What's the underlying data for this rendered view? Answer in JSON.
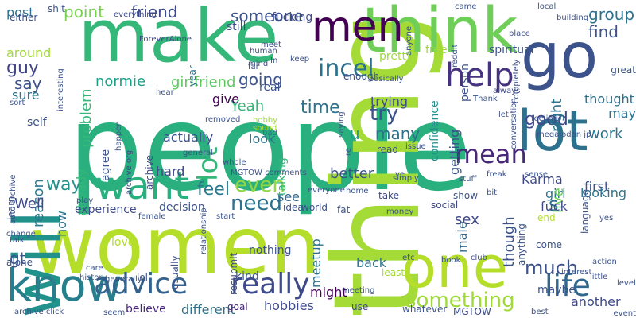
{
  "words": [
    {
      "text": "people",
      "color": "#2ab07f"
    },
    {
      "text": "women",
      "color": "#b5de2b"
    },
    {
      "text": "thing",
      "color": "#a5db36"
    },
    {
      "text": "make",
      "color": "#35b779"
    },
    {
      "text": "think",
      "color": "#6ece58"
    },
    {
      "text": "will",
      "color": "#21918c"
    },
    {
      "text": "go",
      "color": "#3b528b"
    },
    {
      "text": "lot",
      "color": "#2c728e"
    },
    {
      "text": "one",
      "color": "#b5de2b"
    },
    {
      "text": "know",
      "color": "#277f8e"
    },
    {
      "text": "men",
      "color": "#440154"
    },
    {
      "text": "want",
      "color": "#2ab07f"
    },
    {
      "text": "advice",
      "color": "#33638d"
    },
    {
      "text": "really",
      "color": "#3e4a89"
    },
    {
      "text": "life",
      "color": "#31688e"
    },
    {
      "text": "help",
      "color": "#46327e"
    },
    {
      "text": "incel",
      "color": "#2c728e"
    },
    {
      "text": "something",
      "color": "#a0da39"
    },
    {
      "text": "much",
      "color": "#3b528b"
    },
    {
      "text": "need",
      "color": "#2c728e"
    },
    {
      "text": "mean",
      "color": "#482878"
    },
    {
      "text": "even",
      "color": "#8fd744"
    },
    {
      "text": "good",
      "color": "#3e4a89"
    },
    {
      "text": "lot",
      "color": "#35b779"
    },
    {
      "text": "feel",
      "color": "#2a788e"
    },
    {
      "text": "way",
      "color": "#21918c"
    },
    {
      "text": "time",
      "color": "#2c728e"
    },
    {
      "text": "try",
      "color": "#3b528b"
    },
    {
      "text": "guy",
      "color": "#414487"
    },
    {
      "text": "post",
      "color": "#2c728e"
    },
    {
      "text": "point",
      "color": "#7ad151"
    },
    {
      "text": "friend",
      "color": "#3e4a89"
    },
    {
      "text": "someone",
      "color": "#3b528b"
    },
    {
      "text": "group",
      "color": "#2c728e"
    },
    {
      "text": "find",
      "color": "#3b528b"
    },
    {
      "text": "going",
      "color": "#3b528b"
    },
    {
      "text": "problem",
      "color": "#35b779"
    },
    {
      "text": "normie",
      "color": "#1f9e89"
    },
    {
      "text": "girlfriend",
      "color": "#5ec962"
    },
    {
      "text": "say",
      "color": "#3b528b"
    },
    {
      "text": "reason",
      "color": "#2a788e"
    },
    {
      "text": "Well",
      "color": "#3e4a89"
    },
    {
      "text": "see",
      "color": "#31688e"
    },
    {
      "text": "work",
      "color": "#2c728e"
    },
    {
      "text": "right",
      "color": "#2c728e"
    },
    {
      "text": "better",
      "color": "#3b528b"
    },
    {
      "text": "meetup",
      "color": "#2c728e"
    },
    {
      "text": "might",
      "color": "#440154"
    },
    {
      "text": "though",
      "color": "#3b528b"
    },
    {
      "text": "many",
      "color": "#2c728e"
    },
    {
      "text": "Yeah",
      "color": "#35b779"
    },
    {
      "text": "hobbies",
      "color": "#3e4a89"
    },
    {
      "text": "different",
      "color": "#2c728e"
    },
    {
      "text": "believe",
      "color": "#482878"
    },
    {
      "text": "decision",
      "color": "#3b528b"
    },
    {
      "text": "already",
      "color": "#35b779"
    },
    {
      "text": "sure",
      "color": "#2a788e"
    },
    {
      "text": "gt",
      "color": "#3b528b"
    },
    {
      "text": "s",
      "color": "#2c728e"
    },
    {
      "text": "u",
      "color": "#1f9e89"
    },
    {
      "text": "back",
      "color": "#2c728e"
    },
    {
      "text": "another",
      "color": "#3e4a89"
    },
    {
      "text": "look",
      "color": "#2c728e"
    },
    {
      "text": "Karma",
      "color": "#3e4a89"
    },
    {
      "text": "maybe",
      "color": "#3b528b"
    },
    {
      "text": "sex",
      "color": "#3e4a89"
    },
    {
      "text": "girl",
      "color": "#2c728e"
    },
    {
      "text": "first",
      "color": "#3b528b"
    },
    {
      "text": "thought",
      "color": "#2c728e"
    },
    {
      "text": "may",
      "color": "#2c728e"
    },
    {
      "text": "confidence",
      "color": "#21918c"
    },
    {
      "text": "getting",
      "color": "#3b528b"
    },
    {
      "text": "trying",
      "color": "#3e4a89"
    },
    {
      "text": "talking",
      "color": "#35b779"
    },
    {
      "text": "agree",
      "color": "#3b528b"
    },
    {
      "text": "actually",
      "color": "#3b528b"
    },
    {
      "text": "hard",
      "color": "#3e4a89"
    },
    {
      "text": "give",
      "color": "#440154"
    },
    {
      "text": "real",
      "color": "#3b528b"
    },
    {
      "text": "male",
      "color": "#31688e"
    },
    {
      "text": "live",
      "color": "#6ece58"
    },
    {
      "text": "fuck",
      "color": "#3e4a89"
    },
    {
      "text": "looking",
      "color": "#2c728e"
    },
    {
      "text": "experience",
      "color": "#3e4a89"
    },
    {
      "text": "now",
      "color": "#2c728e"
    },
    {
      "text": "archive",
      "color": "#3e4a89"
    },
    {
      "text": "self",
      "color": "#3b528b"
    },
    {
      "text": "still",
      "color": "#3e4a89"
    },
    {
      "text": "around",
      "color": "#a0da39"
    },
    {
      "text": "love",
      "color": "#b5de2b"
    },
    {
      "text": "nothing",
      "color": "#3b528b"
    },
    {
      "text": "kind",
      "color": "#3b528b"
    },
    {
      "text": "goal",
      "color": "#482878"
    },
    {
      "text": "use",
      "color": "#3e4a89"
    },
    {
      "text": "whatever",
      "color": "#3b528b"
    },
    {
      "text": "MGTOW",
      "color": "#3e4a89"
    },
    {
      "text": "usually",
      "color": "#3b528b"
    },
    {
      "text": "resubmit",
      "color": "#3e4a89"
    },
    {
      "text": "pretty",
      "color": "#a0da39"
    },
    {
      "text": "free",
      "color": "#a0da39"
    },
    {
      "text": "person",
      "color": "#3b528b"
    },
    {
      "text": "spiritual",
      "color": "#3b528b"
    },
    {
      "text": "fucking",
      "color": "#3e4a89"
    },
    {
      "text": "enough",
      "color": "#3b528b"
    },
    {
      "text": "read",
      "color": "#3b528b"
    },
    {
      "text": "take",
      "color": "#3e4a89"
    },
    {
      "text": "show",
      "color": "#3b528b"
    },
    {
      "text": "social",
      "color": "#3e4a89"
    },
    {
      "text": "come",
      "color": "#3b528b"
    },
    {
      "text": "end",
      "color": "#b5de2b"
    },
    {
      "text": "language",
      "color": "#3b528b"
    },
    {
      "text": "anything",
      "color": "#3b528b"
    },
    {
      "text": "least",
      "color": "#a0da39"
    },
    {
      "text": "either",
      "color": "#3b528b"
    },
    {
      "text": "shit",
      "color": "#3b528b"
    },
    {
      "text": "everything",
      "color": "#3e4a89"
    },
    {
      "text": "year",
      "color": "#2c728e"
    },
    {
      "text": "idea",
      "color": "#3b528b"
    },
    {
      "text": "world",
      "color": "#3b528b"
    },
    {
      "text": "fat",
      "color": "#3b528b"
    },
    {
      "text": "bad",
      "color": "#2c728e"
    },
    {
      "text": "learn",
      "color": "#3b528b"
    },
    {
      "text": "change",
      "color": "#3b528b"
    },
    {
      "text": "talk",
      "color": "#3b528b"
    },
    {
      "text": "alone",
      "color": "#3b528b"
    },
    {
      "text": "lol",
      "color": "#3b528b"
    },
    {
      "text": "interest",
      "color": "#3b528b"
    },
    {
      "text": "great",
      "color": "#3b528b"
    },
    {
      "text": "reddit",
      "color": "#3b528b"
    },
    {
      "text": "always",
      "color": "#3e4a89"
    },
    {
      "text": "meet",
      "color": "#3b528b"
    },
    {
      "text": "keep",
      "color": "#3b528b"
    },
    {
      "text": "mind",
      "color": "#3b528b"
    },
    {
      "text": "interesting",
      "color": "#3b528b"
    },
    {
      "text": "auto archive",
      "color": "#3b528b"
    },
    {
      "text": "archive click",
      "color": "#3b528b"
    },
    {
      "text": "archive org",
      "color": "#3e4a89"
    },
    {
      "text": "ForeverAlone",
      "color": "#3e4a89"
    },
    {
      "text": "megalodon jp",
      "color": "#3b528b"
    },
    {
      "text": "MGTOW comments",
      "color": "#3b528b"
    },
    {
      "text": "conversation",
      "color": "#3b528b"
    },
    {
      "text": "relationship",
      "color": "#3b528b"
    },
    {
      "text": "everyone",
      "color": "#3b528b"
    },
    {
      "text": "meeting",
      "color": "#3b528b"
    },
    {
      "text": "hobby",
      "color": "#a0da39"
    },
    {
      "text": "removed",
      "color": "#3b528b"
    },
    {
      "text": "sound",
      "color": "#b5de2b"
    },
    {
      "text": "money",
      "color": "#3b528b"
    },
    {
      "text": "stuff",
      "color": "#3b528b"
    },
    {
      "text": "simply",
      "color": "#3b528b"
    },
    {
      "text": "issue",
      "color": "#3b528b"
    },
    {
      "text": "freak",
      "color": "#3b528b"
    },
    {
      "text": "sense",
      "color": "#3b528b"
    },
    {
      "text": "feeling",
      "color": "#3b528b"
    },
    {
      "text": "Thank",
      "color": "#3b528b"
    },
    {
      "text": "let",
      "color": "#3b528b"
    },
    {
      "text": "etc",
      "color": "#3b528b"
    },
    {
      "text": "book",
      "color": "#3b528b"
    },
    {
      "text": "club",
      "color": "#3b528b"
    },
    {
      "text": "level",
      "color": "#3b528b"
    },
    {
      "text": "yes",
      "color": "#3b528b"
    },
    {
      "text": "action",
      "color": "#3b528b"
    },
    {
      "text": "best",
      "color": "#3b528b"
    },
    {
      "text": "event",
      "color": "#3b528b"
    },
    {
      "text": "seem",
      "color": "#3b528b"
    },
    {
      "text": "history",
      "color": "#3b528b"
    },
    {
      "text": "generally",
      "color": "#3b528b"
    },
    {
      "text": "care",
      "color": "#3b528b"
    },
    {
      "text": "female",
      "color": "#3b528b"
    },
    {
      "text": "start",
      "color": "#3b528b"
    },
    {
      "text": "play",
      "color": "#3b528b"
    },
    {
      "text": "happen",
      "color": "#3b528b"
    },
    {
      "text": "whole",
      "color": "#3b528b"
    },
    {
      "text": "general",
      "color": "#3b528b"
    },
    {
      "text": "human",
      "color": "#3b528b"
    },
    {
      "text": "far",
      "color": "#3b528b"
    },
    {
      "text": "hear",
      "color": "#3b528b"
    },
    {
      "text": "sort",
      "color": "#3b528b"
    },
    {
      "text": "saying",
      "color": "#3b528b"
    },
    {
      "text": "basically",
      "color": "#3b528b"
    },
    {
      "text": "completely",
      "color": "#3b528b"
    },
    {
      "text": "anyone",
      "color": "#3b528b"
    },
    {
      "text": "came",
      "color": "#3b528b"
    },
    {
      "text": "local",
      "color": "#3b528b"
    },
    {
      "text": "building",
      "color": "#3b528b"
    },
    {
      "text": "place",
      "color": "#3b528b"
    },
    {
      "text": "little",
      "color": "#3b528b"
    },
    {
      "text": "home",
      "color": "#3b528b"
    },
    {
      "text": "ve",
      "color": "#3b528b"
    },
    {
      "text": "re",
      "color": "#3b528b"
    },
    {
      "text": "In",
      "color": "#3b528b"
    },
    {
      "text": "bit",
      "color": "#3b528b"
    }
  ]
}
